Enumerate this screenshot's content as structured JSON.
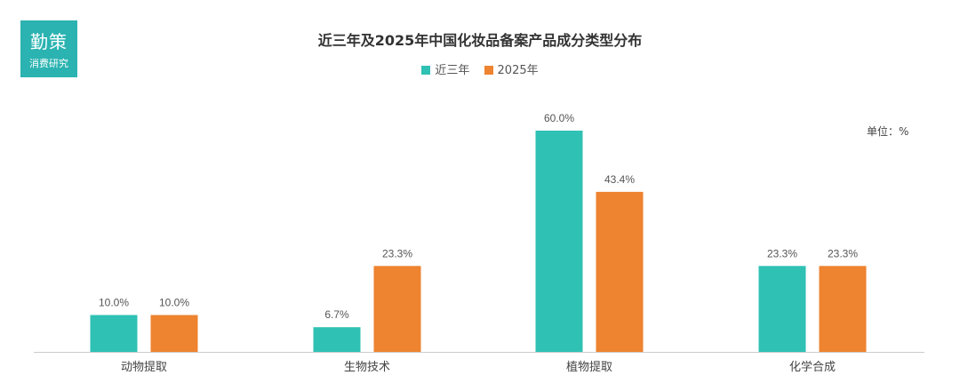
{
  "logo": {
    "main": "勤策",
    "sub": "消费研究"
  },
  "unit_label": "单位：%",
  "colors": {
    "series1": "#2fc1b4",
    "series2": "#ee8330"
  },
  "chart_data": {
    "type": "bar",
    "title": "近三年及2025年中国化妆品备案产品成分类型分布",
    "categories": [
      "动物提取",
      "生物技术",
      "植物提取",
      "化学合成"
    ],
    "series": [
      {
        "name": "近三年",
        "values": [
          10.0,
          6.7,
          60.0,
          23.3
        ]
      },
      {
        "name": "2025年",
        "values": [
          10.0,
          23.3,
          43.4,
          23.3
        ]
      }
    ],
    "ylim": [
      0,
      60
    ],
    "legend_position": "top-center",
    "value_suffix": "%"
  }
}
